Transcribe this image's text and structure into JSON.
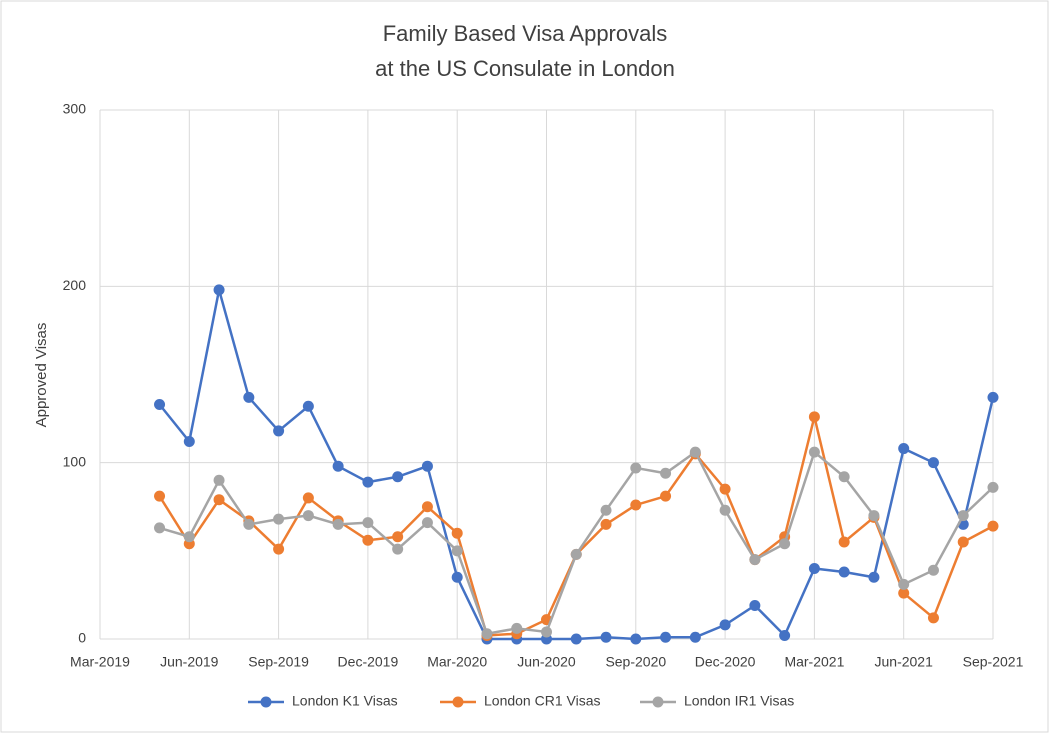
{
  "chart_data": {
    "type": "line",
    "title": "Family Based Visa Approvals",
    "subtitle": "at the US Consulate in London",
    "y_label": "Approved Visas",
    "x": [
      "May-2019",
      "Jun-2019",
      "Jul-2019",
      "Aug-2019",
      "Sep-2019",
      "Oct-2019",
      "Nov-2019",
      "Dec-2019",
      "Jan-2020",
      "Feb-2020",
      "Mar-2020",
      "Apr-2020",
      "May-2020",
      "Jun-2020",
      "Jul-2020",
      "Aug-2020",
      "Sep-2020",
      "Oct-2020",
      "Nov-2020",
      "Dec-2020",
      "Jan-2021",
      "Feb-2021",
      "Mar-2021",
      "Apr-2021",
      "May-2021",
      "Jun-2021",
      "Jul-2021",
      "Aug-2021",
      "Sep-2021"
    ],
    "series": [
      {
        "name": "London K1 Visas",
        "color": "#4472c4",
        "values": [
          133,
          112,
          198,
          137,
          118,
          132,
          98,
          89,
          92,
          98,
          35,
          0,
          0,
          0,
          0,
          1,
          0,
          1,
          1,
          8,
          19,
          2,
          40,
          38,
          35,
          108,
          100,
          65,
          137
        ]
      },
      {
        "name": "London CR1 Visas",
        "color": "#ed7d31",
        "values": [
          81,
          54,
          79,
          67,
          51,
          80,
          67,
          56,
          58,
          75,
          60,
          2,
          3,
          11,
          48,
          65,
          76,
          81,
          105,
          85,
          45,
          58,
          126,
          55,
          69,
          26,
          12,
          55,
          64
        ]
      },
      {
        "name": "London IR1 Visas",
        "color": "#a5a5a5",
        "values": [
          63,
          58,
          90,
          65,
          68,
          70,
          65,
          66,
          51,
          66,
          50,
          3,
          6,
          4,
          48,
          73,
          97,
          94,
          106,
          73,
          45,
          54,
          106,
          92,
          70,
          31,
          39,
          70,
          86
        ]
      }
    ],
    "xlim": [
      "Mar-2019",
      "Sep-2021"
    ],
    "xticks": [
      "Mar-2019",
      "Jun-2019",
      "Sep-2019",
      "Dec-2019",
      "Mar-2020",
      "Jun-2020",
      "Sep-2020",
      "Dec-2020",
      "Mar-2021",
      "Jun-2021",
      "Sep-2021"
    ],
    "ylim": [
      0,
      300
    ],
    "yticks": [
      0,
      100,
      200,
      300
    ],
    "grid": true,
    "legend": "bottom"
  }
}
